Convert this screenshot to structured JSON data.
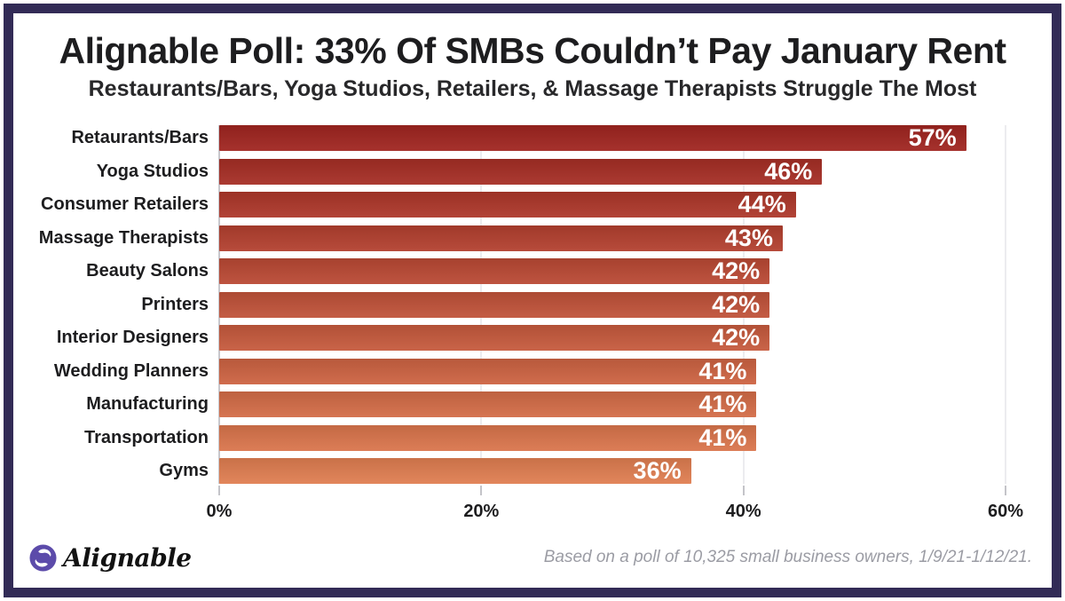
{
  "frame": {
    "border_color": "#322b56"
  },
  "header": {
    "title": "Alignable Poll: 33% Of SMBs Couldn’t Pay January Rent",
    "subtitle": "Restaurants/Bars, Yoga Studios, Retailers, & Massage Therapists Struggle The Most"
  },
  "chart_data": {
    "type": "bar",
    "orientation": "horizontal",
    "title": "Alignable Poll: 33% Of SMBs Couldn’t Pay January Rent",
    "subtitle": "Restaurants/Bars, Yoga Studios, Retailers, & Massage Therapists Struggle The Most",
    "categories": [
      "Retaurants/Bars",
      "Yoga Studios",
      "Consumer Retailers",
      "Massage Therapists",
      "Beauty Salons",
      "Printers",
      "Interior Designers",
      "Wedding Planners",
      "Manufacturing",
      "Transportation",
      "Gyms"
    ],
    "values": [
      57,
      46,
      44,
      43,
      42,
      42,
      42,
      41,
      41,
      41,
      36
    ],
    "value_labels": [
      "57%",
      "46%",
      "44%",
      "43%",
      "42%",
      "42%",
      "42%",
      "41%",
      "41%",
      "41%",
      "36%"
    ],
    "bar_colors": [
      "#a02520",
      "#a62e25",
      "#ad372a",
      "#b3402f",
      "#ba4934",
      "#c05239",
      "#c65a3d",
      "#cd6342",
      "#d36c47",
      "#da754c",
      "#e07e51"
    ],
    "value_label_color": "#ffffff",
    "xlim": [
      0,
      60
    ],
    "x_tick_values": [
      0,
      20,
      40,
      60
    ],
    "x_tick_labels": [
      "0%",
      "20%",
      "40%",
      "60%"
    ],
    "grid": "vertical-gridlines-on",
    "legend": "none"
  },
  "footer": {
    "logo_text": "Alignable",
    "logo_icon": "alignable-swirl-icon",
    "logo_color": "#5c4baa",
    "attribution": "Based on a poll of 10,325 small business owners, 1/9/21-1/12/21."
  }
}
